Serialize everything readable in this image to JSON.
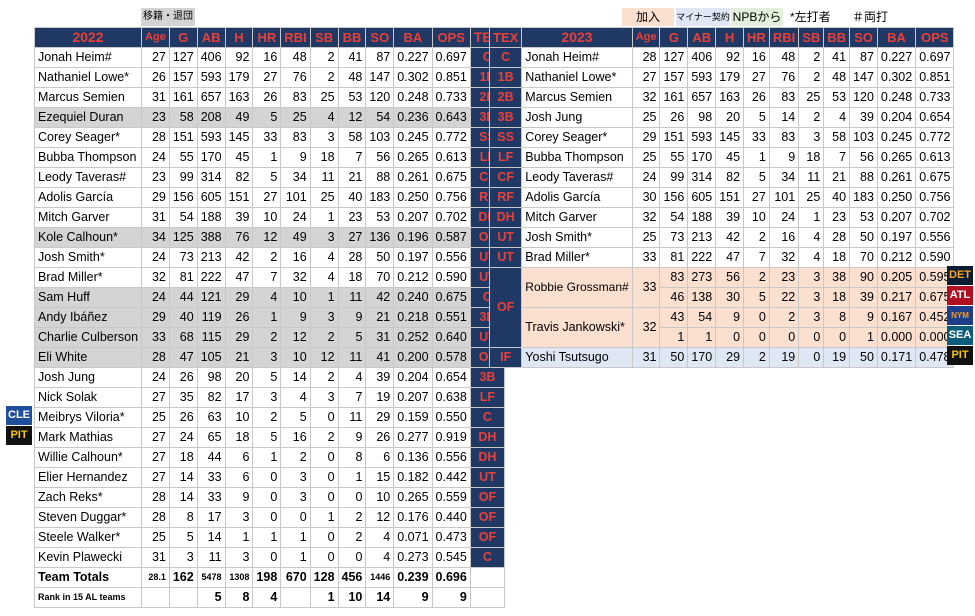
{
  "legend_left": "移籍・退団",
  "legend_add": "加入",
  "legend_minor": "マイナー契約",
  "legend_npb": "NPBから",
  "legend_left_hand": "*左打者",
  "legend_switch": "＃両打",
  "left_table": {
    "year": "2022",
    "headers": [
      "Age",
      "G",
      "AB",
      "H",
      "HR",
      "RBI",
      "SB",
      "BB",
      "SO",
      "BA",
      "OPS"
    ],
    "rows": [
      {
        "name": "Jonah Heim#",
        "stats": [
          "27",
          "127",
          "406",
          "92",
          "16",
          "48",
          "2",
          "41",
          "87",
          "0.227",
          "0.697"
        ],
        "pos": "C"
      },
      {
        "name": "Nathaniel Lowe*",
        "stats": [
          "26",
          "157",
          "593",
          "179",
          "27",
          "76",
          "2",
          "48",
          "147",
          "0.302",
          "0.851"
        ],
        "pos": "1B"
      },
      {
        "name": "Marcus Semien",
        "stats": [
          "31",
          "161",
          "657",
          "163",
          "26",
          "83",
          "25",
          "53",
          "120",
          "0.248",
          "0.733"
        ],
        "pos": "2B"
      },
      {
        "name": "Ezequiel Duran",
        "stats": [
          "23",
          "58",
          "208",
          "49",
          "5",
          "25",
          "4",
          "12",
          "54",
          "0.236",
          "0.643"
        ],
        "pos": "3B",
        "gray": true
      },
      {
        "name": "Corey Seager*",
        "stats": [
          "28",
          "151",
          "593",
          "145",
          "33",
          "83",
          "3",
          "58",
          "103",
          "0.245",
          "0.772"
        ],
        "pos": "SS"
      },
      {
        "name": "Bubba Thompson",
        "stats": [
          "24",
          "55",
          "170",
          "45",
          "1",
          "9",
          "18",
          "7",
          "56",
          "0.265",
          "0.613"
        ],
        "pos": "LF"
      },
      {
        "name": "Leody Taveras#",
        "stats": [
          "23",
          "99",
          "314",
          "82",
          "5",
          "34",
          "11",
          "21",
          "88",
          "0.261",
          "0.675"
        ],
        "pos": "CF"
      },
      {
        "name": "Adolis García",
        "stats": [
          "29",
          "156",
          "605",
          "151",
          "27",
          "101",
          "25",
          "40",
          "183",
          "0.250",
          "0.756"
        ],
        "pos": "RF"
      },
      {
        "name": "Mitch Garver",
        "stats": [
          "31",
          "54",
          "188",
          "39",
          "10",
          "24",
          "1",
          "23",
          "53",
          "0.207",
          "0.702"
        ],
        "pos": "DH"
      },
      {
        "name": "Kole Calhoun*",
        "stats": [
          "34",
          "125",
          "388",
          "76",
          "12",
          "49",
          "3",
          "27",
          "136",
          "0.196",
          "0.587"
        ],
        "pos": "OF",
        "gray": true
      },
      {
        "name": "Josh Smith*",
        "stats": [
          "24",
          "73",
          "213",
          "42",
          "2",
          "16",
          "4",
          "28",
          "50",
          "0.197",
          "0.556"
        ],
        "pos": "UT"
      },
      {
        "name": "Brad Miller*",
        "stats": [
          "32",
          "81",
          "222",
          "47",
          "7",
          "32",
          "4",
          "18",
          "70",
          "0.212",
          "0.590"
        ],
        "pos": "UT"
      },
      {
        "name": "Sam Huff",
        "stats": [
          "24",
          "44",
          "121",
          "29",
          "4",
          "10",
          "1",
          "11",
          "42",
          "0.240",
          "0.675"
        ],
        "pos": "C",
        "gray": true
      },
      {
        "name": "Andy Ibáñez",
        "stats": [
          "29",
          "40",
          "119",
          "26",
          "1",
          "9",
          "3",
          "9",
          "21",
          "0.218",
          "0.551"
        ],
        "pos": "3B",
        "gray": true
      },
      {
        "name": "Charlie Culberson",
        "stats": [
          "33",
          "68",
          "115",
          "29",
          "2",
          "12",
          "2",
          "5",
          "31",
          "0.252",
          "0.640"
        ],
        "pos": "UT",
        "gray": true
      },
      {
        "name": "Eli White",
        "stats": [
          "28",
          "47",
          "105",
          "21",
          "3",
          "10",
          "12",
          "11",
          "41",
          "0.200",
          "0.578"
        ],
        "pos": "OF",
        "gray": true
      },
      {
        "name": "Josh Jung",
        "stats": [
          "24",
          "26",
          "98",
          "20",
          "5",
          "14",
          "2",
          "4",
          "39",
          "0.204",
          "0.654"
        ],
        "pos": "3B"
      },
      {
        "name": "Nick Solak",
        "stats": [
          "27",
          "35",
          "82",
          "17",
          "3",
          "4",
          "3",
          "7",
          "19",
          "0.207",
          "0.638"
        ],
        "pos": "LF"
      },
      {
        "name": "Meibrys Viloria*",
        "stats": [
          "25",
          "26",
          "63",
          "10",
          "2",
          "5",
          "0",
          "11",
          "29",
          "0.159",
          "0.550"
        ],
        "pos": "C"
      },
      {
        "name": "Mark Mathias",
        "stats": [
          "27",
          "24",
          "65",
          "18",
          "5",
          "16",
          "2",
          "9",
          "26",
          "0.277",
          "0.919"
        ],
        "pos": "DH"
      },
      {
        "name": "Willie Calhoun*",
        "stats": [
          "27",
          "18",
          "44",
          "6",
          "1",
          "2",
          "0",
          "8",
          "6",
          "0.136",
          "0.556"
        ],
        "pos": "DH"
      },
      {
        "name": "Elier Hernandez",
        "stats": [
          "27",
          "14",
          "33",
          "6",
          "0",
          "3",
          "0",
          "1",
          "15",
          "0.182",
          "0.442"
        ],
        "pos": "UT"
      },
      {
        "name": "Zach Reks*",
        "stats": [
          "28",
          "14",
          "33",
          "9",
          "0",
          "3",
          "0",
          "0",
          "10",
          "0.265",
          "0.559"
        ],
        "pos": "OF"
      },
      {
        "name": "Steven Duggar*",
        "stats": [
          "28",
          "8",
          "17",
          "3",
          "0",
          "0",
          "1",
          "2",
          "12",
          "0.176",
          "0.440"
        ],
        "pos": "OF"
      },
      {
        "name": "Steele Walker*",
        "stats": [
          "25",
          "5",
          "14",
          "1",
          "1",
          "1",
          "0",
          "2",
          "4",
          "0.071",
          "0.473"
        ],
        "pos": "OF"
      },
      {
        "name": "Kevin Plawecki",
        "stats": [
          "31",
          "3",
          "11",
          "3",
          "0",
          "1",
          "0",
          "0",
          "4",
          "0.273",
          "0.545"
        ],
        "pos": "C"
      }
    ],
    "totals": {
      "label": "Team Totals",
      "stats": [
        "28.1",
        "162",
        "5478",
        "1308",
        "198",
        "670",
        "128",
        "456",
        "1446",
        "0.239",
        "0.696"
      ]
    },
    "rank": {
      "label": "Rank in 15 AL teams",
      "stats": [
        "",
        "",
        "5",
        "8",
        "4",
        "",
        "1",
        "10",
        "14",
        "9",
        "9"
      ]
    }
  },
  "center_header": "TEX",
  "right_table": {
    "year": "2023",
    "headers": [
      "Age",
      "G",
      "AB",
      "H",
      "HR",
      "RBI",
      "SB",
      "BB",
      "SO",
      "BA",
      "OPS"
    ],
    "rows": [
      {
        "pos": "C",
        "name": "Jonah Heim#",
        "stats": [
          "28",
          "127",
          "406",
          "92",
          "16",
          "48",
          "2",
          "41",
          "87",
          "0.227",
          "0.697"
        ]
      },
      {
        "pos": "1B",
        "name": "Nathaniel Lowe*",
        "stats": [
          "27",
          "157",
          "593",
          "179",
          "27",
          "76",
          "2",
          "48",
          "147",
          "0.302",
          "0.851"
        ]
      },
      {
        "pos": "2B",
        "name": "Marcus Semien",
        "stats": [
          "32",
          "161",
          "657",
          "163",
          "26",
          "83",
          "25",
          "53",
          "120",
          "0.248",
          "0.733"
        ]
      },
      {
        "pos": "3B",
        "name": "Josh Jung",
        "stats": [
          "25",
          "26",
          "98",
          "20",
          "5",
          "14",
          "2",
          "4",
          "39",
          "0.204",
          "0.654"
        ]
      },
      {
        "pos": "SS",
        "name": "Corey Seager*",
        "stats": [
          "29",
          "151",
          "593",
          "145",
          "33",
          "83",
          "3",
          "58",
          "103",
          "0.245",
          "0.772"
        ]
      },
      {
        "pos": "LF",
        "name": "Bubba Thompson",
        "stats": [
          "25",
          "55",
          "170",
          "45",
          "1",
          "9",
          "18",
          "7",
          "56",
          "0.265",
          "0.613"
        ]
      },
      {
        "pos": "CF",
        "name": "Leody Taveras#",
        "stats": [
          "24",
          "99",
          "314",
          "82",
          "5",
          "34",
          "11",
          "21",
          "88",
          "0.261",
          "0.675"
        ]
      },
      {
        "pos": "RF",
        "name": "Adolis García",
        "stats": [
          "30",
          "156",
          "605",
          "151",
          "27",
          "101",
          "25",
          "40",
          "183",
          "0.250",
          "0.756"
        ]
      },
      {
        "pos": "DH",
        "name": "Mitch Garver",
        "stats": [
          "32",
          "54",
          "188",
          "39",
          "10",
          "24",
          "1",
          "23",
          "53",
          "0.207",
          "0.702"
        ]
      },
      {
        "pos": "UT",
        "name": "Josh Smith*",
        "stats": [
          "25",
          "73",
          "213",
          "42",
          "2",
          "16",
          "4",
          "28",
          "50",
          "0.197",
          "0.556"
        ]
      },
      {
        "pos": "UT",
        "name": "Brad Miller*",
        "stats": [
          "33",
          "81",
          "222",
          "47",
          "7",
          "32",
          "4",
          "18",
          "70",
          "0.212",
          "0.590"
        ]
      }
    ],
    "grossman": {
      "pos": "OF",
      "name": "Robbie Grossman#",
      "age": "33",
      "line1": [
        "83",
        "273",
        "56",
        "2",
        "23",
        "3",
        "38",
        "90",
        "0.205",
        "0.595"
      ],
      "line2": [
        "46",
        "138",
        "30",
        "5",
        "22",
        "3",
        "18",
        "39",
        "0.217",
        "0.675"
      ]
    },
    "jankowski": {
      "name": "Travis Jankowski*",
      "age": "32",
      "line1": [
        "43",
        "54",
        "9",
        "0",
        "2",
        "3",
        "8",
        "9",
        "0.167",
        "0.452"
      ],
      "line2": [
        "1",
        "1",
        "0",
        "0",
        "0",
        "0",
        "0",
        "1",
        "0.000",
        "0.000"
      ]
    },
    "tsutsugo": {
      "pos": "IF",
      "name": "Yoshi Tsutsugo",
      "stats": [
        "31",
        "50",
        "170",
        "29",
        "2",
        "19",
        "0",
        "19",
        "50",
        "0.171",
        "0.478"
      ]
    }
  },
  "left_tags": {
    "cle": "CLE",
    "pit": "PIT"
  },
  "right_tags": {
    "det": "DET",
    "atl": "ATL",
    "nym": "NYM",
    "sea": "SEA",
    "pit": "PIT"
  },
  "colors": {
    "header": "#1f3864",
    "accent": "#e8403a",
    "gray": "#d4d4d4",
    "added": "#fbe0d0",
    "minor": "#dfe6f4",
    "npb": "#e2efda"
  }
}
